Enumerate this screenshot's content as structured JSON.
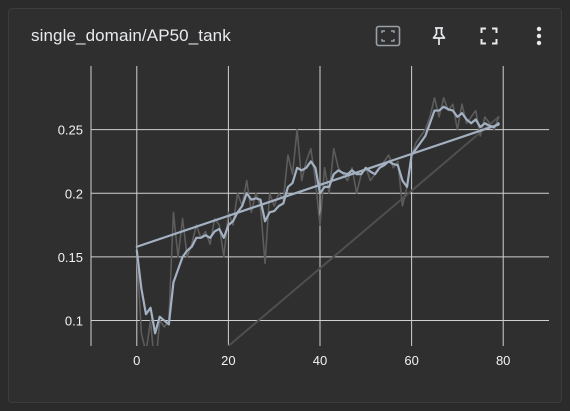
{
  "card": {
    "title": "single_domain/AP50_tank"
  },
  "toolbar": {
    "fit_icon": "fit-domain-icon",
    "pin_icon": "pin-icon",
    "fullscreen_icon": "fullscreen-icon",
    "more_icon": "more-vert-icon"
  },
  "colors": {
    "background": "#2f2f2f",
    "grid": "#d0d0d0",
    "axis_text": "#f2f2f2",
    "smoothed": "#a3b1c2",
    "raw": "#5c5c5c",
    "trend": "#a3b1c2",
    "reference": "#4f4f4f"
  },
  "chart_data": {
    "type": "line",
    "title": "single_domain/AP50_tank",
    "xlabel": "",
    "ylabel": "",
    "xlim": [
      -10,
      90
    ],
    "ylim": [
      0.08,
      0.3
    ],
    "xticks": [
      0,
      20,
      40,
      60,
      80
    ],
    "yticks": [
      0.1,
      0.15,
      0.2,
      0.25
    ],
    "xtick_labels": [
      "0",
      "20",
      "40",
      "60",
      "80"
    ],
    "ytick_labels": [
      "0.1",
      "0.15",
      "0.2",
      "0.25"
    ],
    "grid": true,
    "series": [
      {
        "style": "raw",
        "x": [
          0,
          1,
          2,
          3,
          4,
          5,
          6,
          7,
          8,
          9,
          10,
          11,
          12,
          13,
          14,
          15,
          16,
          17,
          18,
          19,
          20,
          21,
          22,
          23,
          24,
          25,
          26,
          27,
          28,
          29,
          30,
          31,
          32,
          33,
          34,
          35,
          36,
          37,
          38,
          39,
          40,
          41,
          42,
          43,
          44,
          45,
          46,
          47,
          48,
          49,
          50,
          51,
          52,
          53,
          54,
          55,
          56,
          57,
          58,
          59,
          60,
          61,
          62,
          63,
          64,
          65,
          66,
          67,
          68,
          69,
          70,
          71,
          72,
          73,
          74,
          75,
          76,
          77,
          78,
          79
        ],
        "y": [
          0.155,
          0.09,
          0.075,
          0.1,
          0.06,
          0.1,
          0.095,
          0.1,
          0.185,
          0.15,
          0.18,
          0.15,
          0.16,
          0.175,
          0.165,
          0.17,
          0.16,
          0.18,
          0.175,
          0.15,
          0.185,
          0.175,
          0.2,
          0.19,
          0.21,
          0.185,
          0.2,
          0.19,
          0.145,
          0.2,
          0.19,
          0.2,
          0.195,
          0.23,
          0.215,
          0.25,
          0.21,
          0.225,
          0.235,
          0.21,
          0.175,
          0.22,
          0.2,
          0.235,
          0.22,
          0.215,
          0.21,
          0.22,
          0.2,
          0.215,
          0.22,
          0.21,
          0.215,
          0.22,
          0.225,
          0.23,
          0.22,
          0.225,
          0.19,
          0.205,
          0.23,
          0.24,
          0.245,
          0.25,
          0.26,
          0.275,
          0.26,
          0.275,
          0.265,
          0.27,
          0.25,
          0.27,
          0.255,
          0.26,
          0.265,
          0.245,
          0.26,
          0.255,
          0.25,
          0.26
        ]
      },
      {
        "style": "smoothed",
        "x": [
          0,
          1,
          2,
          3,
          4,
          5,
          6,
          7,
          8,
          9,
          10,
          11,
          12,
          13,
          14,
          15,
          16,
          17,
          18,
          19,
          20,
          21,
          22,
          23,
          24,
          25,
          26,
          27,
          28,
          29,
          30,
          31,
          32,
          33,
          34,
          35,
          36,
          37,
          38,
          39,
          40,
          41,
          42,
          43,
          44,
          45,
          46,
          47,
          48,
          49,
          50,
          51,
          52,
          53,
          54,
          55,
          56,
          57,
          58,
          59,
          60,
          61,
          62,
          63,
          64,
          65,
          66,
          67,
          68,
          69,
          70,
          71,
          72,
          73,
          74,
          75,
          76,
          77,
          78,
          79
        ],
        "y": [
          0.155,
          0.125,
          0.105,
          0.11,
          0.09,
          0.103,
          0.1,
          0.097,
          0.13,
          0.14,
          0.15,
          0.155,
          0.158,
          0.165,
          0.165,
          0.167,
          0.165,
          0.17,
          0.172,
          0.165,
          0.175,
          0.178,
          0.185,
          0.19,
          0.2,
          0.195,
          0.196,
          0.195,
          0.178,
          0.185,
          0.186,
          0.19,
          0.192,
          0.205,
          0.208,
          0.22,
          0.218,
          0.22,
          0.225,
          0.22,
          0.2,
          0.205,
          0.205,
          0.215,
          0.218,
          0.216,
          0.215,
          0.218,
          0.215,
          0.215,
          0.22,
          0.217,
          0.215,
          0.22,
          0.222,
          0.225,
          0.223,
          0.222,
          0.21,
          0.205,
          0.23,
          0.235,
          0.24,
          0.245,
          0.255,
          0.265,
          0.265,
          0.268,
          0.266,
          0.265,
          0.26,
          0.263,
          0.258,
          0.255,
          0.258,
          0.252,
          0.255,
          0.253,
          0.252,
          0.255
        ]
      },
      {
        "style": "trend",
        "x": [
          0,
          79
        ],
        "y": [
          0.158,
          0.254
        ]
      },
      {
        "style": "reference",
        "x": [
          20,
          79
        ],
        "y": [
          0.08,
          0.26
        ]
      }
    ]
  }
}
